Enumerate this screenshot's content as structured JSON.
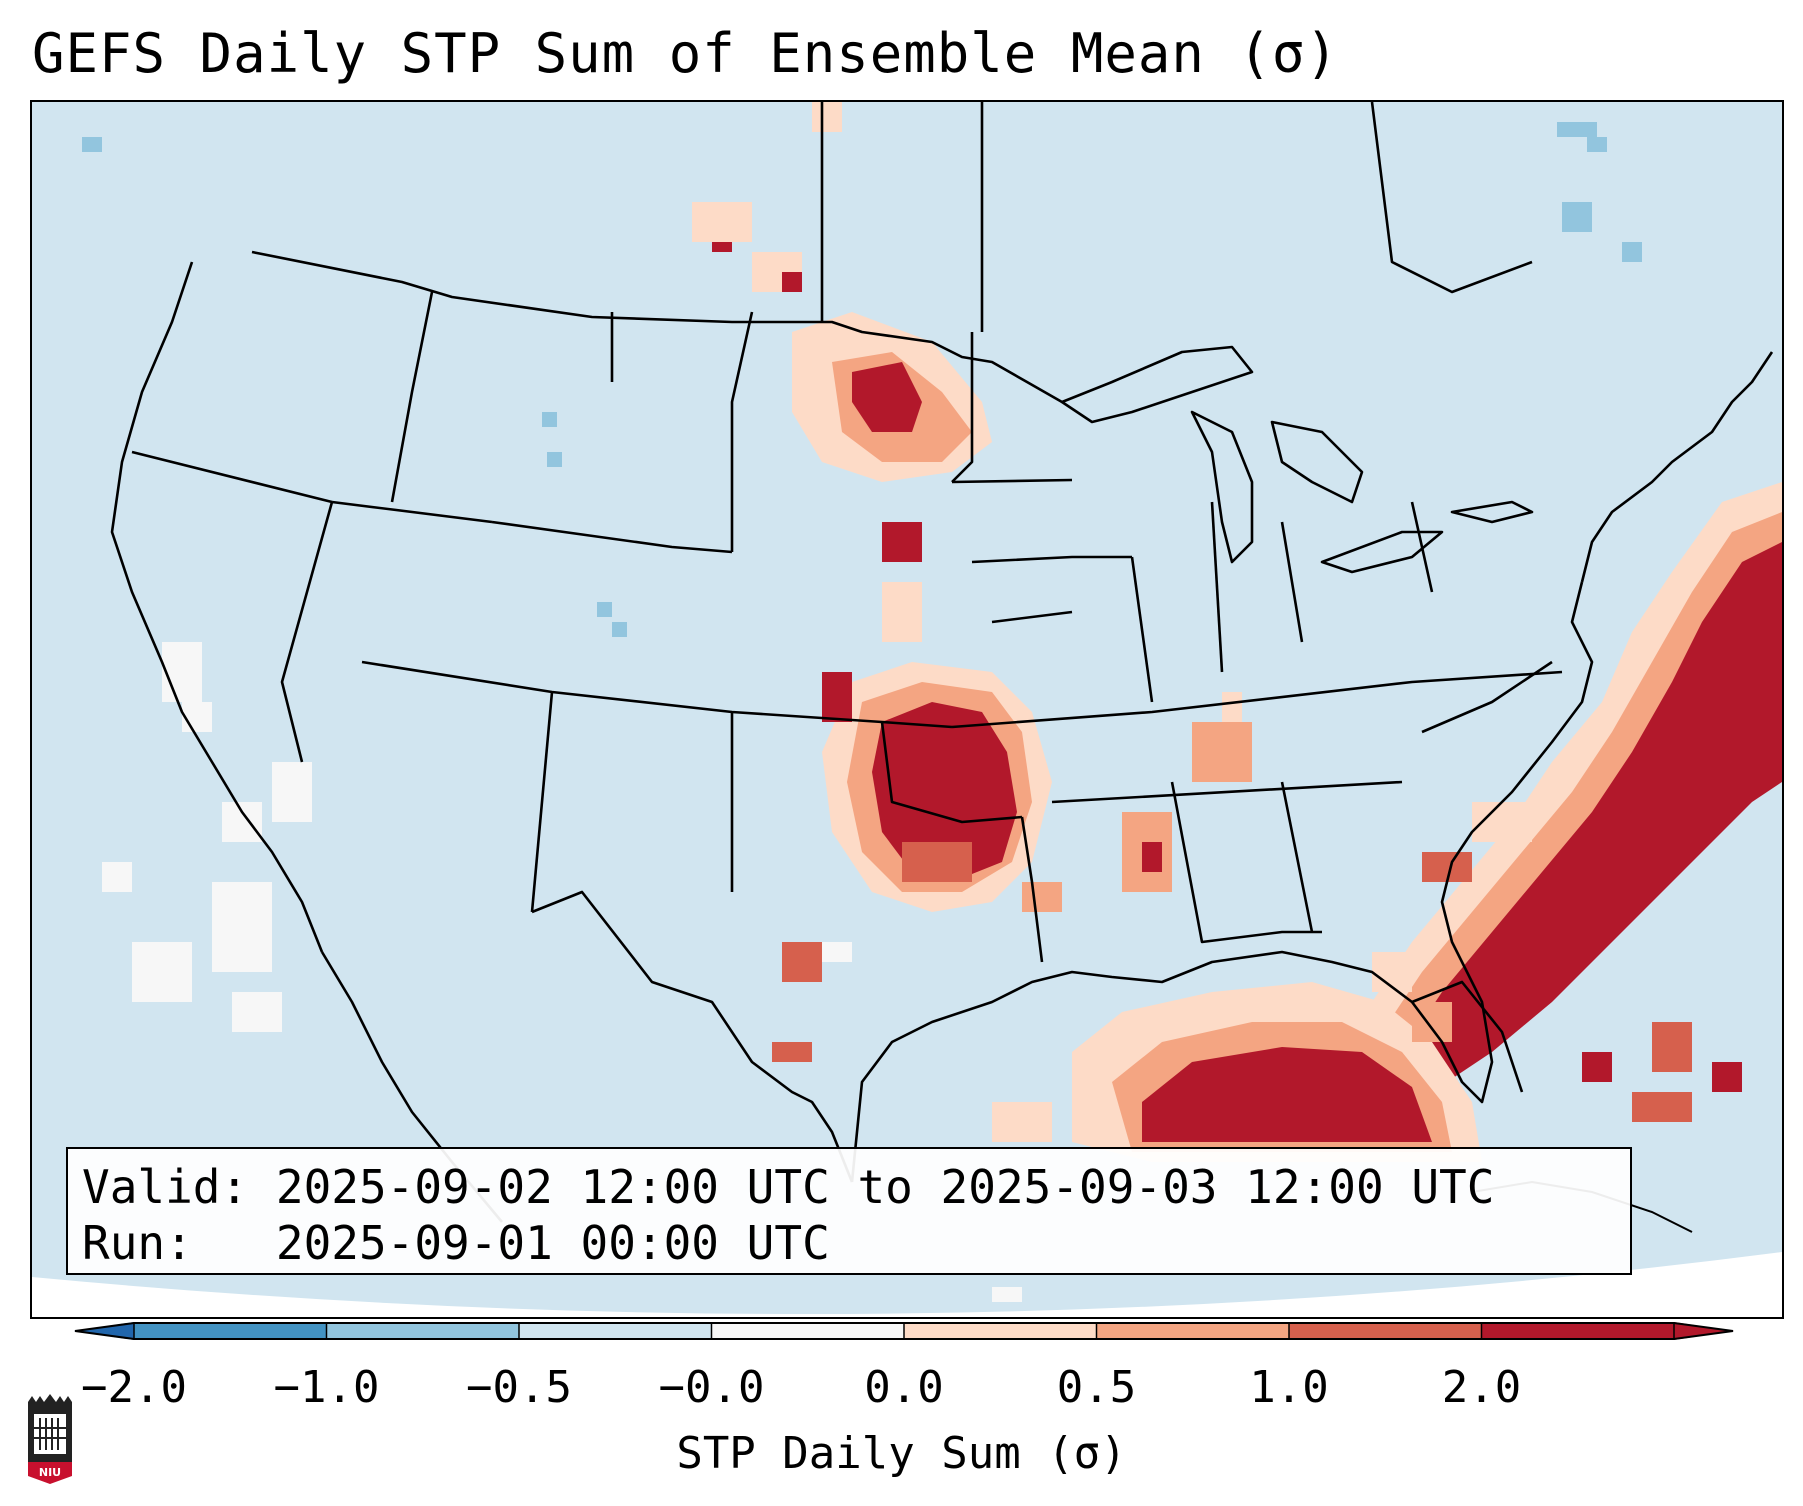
{
  "title": "GEFS Daily STP Sum of Ensemble Mean (σ)",
  "info": {
    "valid_label": "Valid:",
    "valid_value": "2025-09-02 12:00 UTC to 2025-09-03 12:00 UTC",
    "run_label": "Run:",
    "run_value": "2025-09-01 00:00 UTC"
  },
  "colorbar": {
    "label": "STP Daily Sum (σ)",
    "ticks": [
      "−2.0",
      "−1.0",
      "−0.5",
      "−0.0",
      "0.0",
      "0.5",
      "1.0",
      "2.0"
    ],
    "colors": {
      "under": "#2166ac",
      "bins": [
        "#4393c3",
        "#92c5de",
        "#d1e5f0",
        "#f7f7f7",
        "#fddbc7",
        "#f4a582",
        "#d6604d",
        "#b2182b"
      ],
      "over": "#b2182b"
    }
  },
  "map": {
    "background_color": "#d1e5f0",
    "region": "Contiguous United States, southern Canada, northern Mexico, Gulf of Mexico and western Atlantic",
    "features": [
      "Strong positive anomaly (>2.0) over the western Atlantic east of the Carolinas and Florida",
      "Strong positive anomaly (>2.0) over the central Gulf of Mexico",
      "Strong positive anomaly (>2.0) over central and eastern Oklahoma",
      "Strong positive anomaly (>2.0) over southeastern North Dakota and northeastern South Dakota",
      "Positive anomaly over central Nebraska and central Mississippi",
      "Near-zero to slightly negative values off the California coast"
    ]
  },
  "logo": {
    "text": "NIU",
    "color": "#c8102e"
  }
}
